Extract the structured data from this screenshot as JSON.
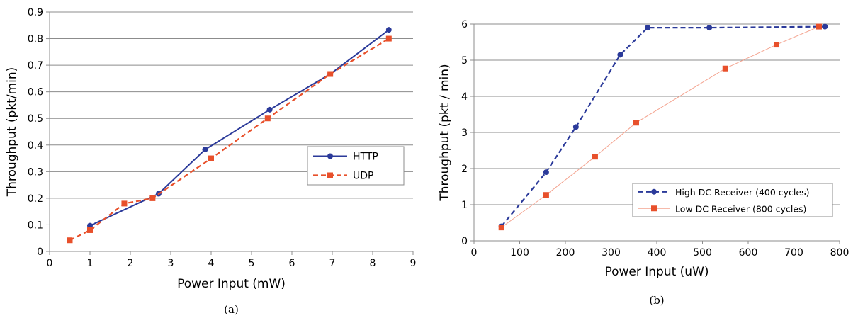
{
  "chart_data": [
    {
      "type": "line",
      "caption": "(a)",
      "xlabel": "Power Input (mW)",
      "ylabel": "Throughput (pkt/min)",
      "xlim": [
        0,
        9
      ],
      "ylim": [
        0,
        0.9
      ],
      "xticks": [
        0,
        1,
        2,
        3,
        4,
        5,
        6,
        7,
        8,
        9
      ],
      "yticks": [
        0,
        0.1,
        0.2,
        0.3,
        0.4,
        0.5,
        0.6,
        0.7,
        0.8,
        0.9
      ],
      "grid": "horizontal",
      "legend_position": "middle-right",
      "series": [
        {
          "name": "HTTP",
          "color": "#2b3a9a",
          "line_style": "solid",
          "marker": "circle",
          "x": [
            1.0,
            2.7,
            3.85,
            5.45,
            6.95,
            8.4
          ],
          "y": [
            0.097,
            0.217,
            0.383,
            0.533,
            0.667,
            0.833
          ]
        },
        {
          "name": "UDP",
          "color": "#e8502b",
          "line_style": "dashed",
          "marker": "square",
          "x": [
            0.5,
            1.0,
            1.85,
            2.55,
            4.0,
            5.4,
            6.95,
            8.4
          ],
          "y": [
            0.042,
            0.08,
            0.18,
            0.2,
            0.35,
            0.5,
            0.667,
            0.8
          ]
        }
      ]
    },
    {
      "type": "line",
      "caption": "(b)",
      "xlabel": "Power Input (uW)",
      "ylabel": "Throughput (pkt / min)",
      "xlim": [
        0,
        800
      ],
      "ylim": [
        0,
        6
      ],
      "xticks": [
        0,
        100,
        200,
        300,
        400,
        500,
        600,
        700,
        800
      ],
      "yticks": [
        0,
        1,
        2,
        3,
        4,
        5,
        6
      ],
      "grid": "horizontal",
      "legend_position": "bottom-right",
      "series": [
        {
          "name": "High DC Receiver (400 cycles)",
          "color": "#2b3a9a",
          "line_style": "dashed",
          "marker": "circle",
          "x": [
            60,
            158,
            223,
            320,
            380,
            515,
            768
          ],
          "y": [
            0.4,
            1.9,
            3.15,
            5.15,
            5.9,
            5.9,
            5.93
          ]
        },
        {
          "name": "Low DC Receiver (800 cycles)",
          "color": "#f4a38f",
          "marker_color": "#e8502b",
          "line_style": "solid",
          "marker": "square",
          "x": [
            60,
            158,
            265,
            355,
            550,
            662,
            755
          ],
          "y": [
            0.37,
            1.27,
            2.33,
            3.27,
            4.77,
            5.43,
            5.93
          ]
        }
      ]
    }
  ]
}
